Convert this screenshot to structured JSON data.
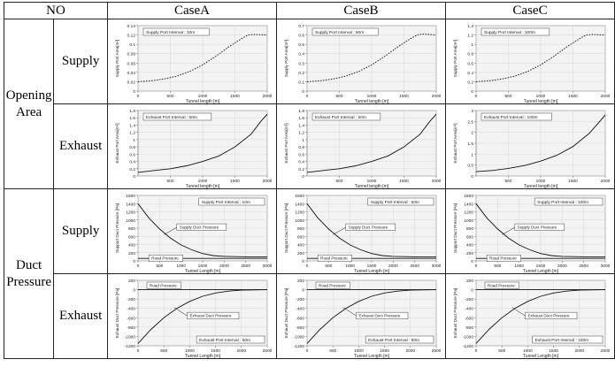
{
  "header": {
    "no": "NO",
    "caseA": "CaseA",
    "caseB": "CaseB",
    "caseC": "CaseC"
  },
  "groups": {
    "opening_area": {
      "line1": "Opening",
      "line2": "Area"
    },
    "duct_pressure": {
      "line1": "Duct",
      "line2": "Pressure"
    }
  },
  "rows": {
    "supply": "Supply",
    "exhaust": "Exhaust"
  },
  "chart_data": [
    {
      "id": "oa_supply_A",
      "type": "line",
      "box": "Supply Port Interval : 10m",
      "ylabel": "Supply Port Area[m²]",
      "xlabel": "Tunnel length [m]",
      "ylim": [
        0,
        0.14
      ],
      "yticks": [
        "0",
        "0.02",
        "0.04",
        "0.06",
        "0.08",
        "0.1",
        "0.12",
        "0.14"
      ],
      "xlim": [
        0,
        2000
      ],
      "xticks": [
        "0",
        "500",
        "1000",
        "1500",
        "2000"
      ],
      "style": "dashed",
      "series": [
        {
          "x": [
            0,
            200,
            400,
            600,
            800,
            1000,
            1200,
            1400,
            1600,
            1700,
            1800,
            2000
          ],
          "y": [
            0.02,
            0.022,
            0.026,
            0.032,
            0.042,
            0.056,
            0.074,
            0.094,
            0.112,
            0.12,
            0.121,
            0.12
          ]
        }
      ]
    },
    {
      "id": "oa_supply_B",
      "type": "line",
      "box": "Supply Port Interval : 50m",
      "ylabel": "Supply Port Area[m²]",
      "xlabel": "Tunnel length [m]",
      "ylim": [
        0,
        0.7
      ],
      "yticks": [
        "0",
        "0.1",
        "0.2",
        "0.3",
        "0.4",
        "0.5",
        "0.6",
        "0.7"
      ],
      "xlim": [
        0,
        2000
      ],
      "xticks": [
        "0",
        "500",
        "1000",
        "1500",
        "2000"
      ],
      "style": "dashed",
      "series": [
        {
          "x": [
            0,
            200,
            400,
            600,
            800,
            1000,
            1200,
            1400,
            1600,
            1700,
            1800,
            2000
          ],
          "y": [
            0.1,
            0.11,
            0.13,
            0.16,
            0.21,
            0.28,
            0.37,
            0.47,
            0.56,
            0.6,
            0.61,
            0.6
          ]
        }
      ]
    },
    {
      "id": "oa_supply_C",
      "type": "line",
      "box": "Supply Port Interval : 100m",
      "ylabel": "Supply Port Area[m²]",
      "xlabel": "Tunnel length [m]",
      "ylim": [
        0,
        1.4
      ],
      "yticks": [
        "0",
        "0.2",
        "0.4",
        "0.6",
        "0.8",
        "1",
        "1.2",
        "1.4"
      ],
      "xlim": [
        0,
        2000
      ],
      "xticks": [
        "0",
        "500",
        "1000",
        "1500",
        "2000"
      ],
      "style": "dashed",
      "series": [
        {
          "x": [
            0,
            200,
            400,
            600,
            800,
            1000,
            1200,
            1400,
            1600,
            1700,
            1800,
            2000
          ],
          "y": [
            0.2,
            0.22,
            0.26,
            0.32,
            0.42,
            0.56,
            0.74,
            0.94,
            1.12,
            1.2,
            1.21,
            1.2
          ]
        }
      ]
    },
    {
      "id": "oa_exhaust_A",
      "type": "line",
      "box": "Exhaust Port Interval : 50m",
      "ylabel": "Exhaust Port Area[m²]",
      "xlabel": "Tunnel length [m]",
      "ylim": [
        0,
        1.8
      ],
      "yticks": [
        "0",
        "0.2",
        "0.4",
        "0.6",
        "0.8",
        "1",
        "1.2",
        "1.4",
        "1.6",
        "1.8"
      ],
      "xlim": [
        0,
        2000
      ],
      "xticks": [
        "500",
        "1000",
        "1500",
        "2000"
      ],
      "style": "solid",
      "series": [
        {
          "x": [
            0,
            250,
            500,
            750,
            1000,
            1250,
            1500,
            1750,
            1900,
            2000
          ],
          "y": [
            0.1,
            0.15,
            0.2,
            0.28,
            0.4,
            0.55,
            0.8,
            1.15,
            1.5,
            1.7
          ]
        }
      ]
    },
    {
      "id": "oa_exhaust_B",
      "type": "line",
      "box": "Exhaust Port Interval : 50m",
      "ylabel": "Exhaust Port Area[m²]",
      "xlabel": "Tunnel length [m]",
      "ylim": [
        0,
        1.8
      ],
      "yticks": [
        "0",
        "0.2",
        "0.4",
        "0.6",
        "0.8",
        "1",
        "1.2",
        "1.4",
        "1.6",
        "1.8"
      ],
      "xlim": [
        0,
        2000
      ],
      "xticks": [
        "500",
        "1000",
        "1500",
        "2000"
      ],
      "style": "solid",
      "series": [
        {
          "x": [
            0,
            250,
            500,
            750,
            1000,
            1250,
            1500,
            1750,
            1900,
            2000
          ],
          "y": [
            0.1,
            0.15,
            0.2,
            0.28,
            0.4,
            0.55,
            0.8,
            1.15,
            1.5,
            1.7
          ]
        }
      ]
    },
    {
      "id": "oa_exhaust_C",
      "type": "line",
      "box": "Exhaust Port Interval : 100m",
      "ylabel": "Exhaust Port Area[m²]",
      "xlabel": "Tunnel length [m]",
      "ylim": [
        0,
        3
      ],
      "yticks": [
        "0",
        "0.5",
        "1",
        "1.5",
        "2",
        "2.5",
        "3"
      ],
      "xlim": [
        0,
        2000
      ],
      "xticks": [
        "500",
        "1000",
        "1500",
        "2000"
      ],
      "style": "solid",
      "series": [
        {
          "x": [
            0,
            250,
            500,
            750,
            1000,
            1250,
            1500,
            1750,
            1900,
            2000
          ],
          "y": [
            0.2,
            0.25,
            0.35,
            0.48,
            0.68,
            0.95,
            1.35,
            1.95,
            2.45,
            2.8
          ]
        }
      ]
    },
    {
      "id": "dp_supply_A",
      "type": "line",
      "box": "Supply Port Interval : 10m",
      "ylabel": "Support Duct Pressure [Pa]",
      "xlabel": "Tunnel Length [m]",
      "ylim": [
        0,
        1600
      ],
      "yticks": [
        "0",
        "200",
        "400",
        "600",
        "800",
        "1000",
        "1200",
        "1400",
        "1600"
      ],
      "xlim": [
        0,
        3000
      ],
      "xticks": [
        "0",
        "500",
        "1000",
        "1500",
        "2000",
        "2500",
        "3000"
      ],
      "style": "solid",
      "labels": [
        "Supply Duct Pressure",
        "Road Pressure"
      ],
      "series": [
        {
          "name": "Supply Duct Pressure",
          "x": [
            0,
            250,
            500,
            750,
            1000,
            1250,
            1500,
            1750,
            2000,
            2500,
            3000
          ],
          "y": [
            1400,
            1050,
            780,
            560,
            390,
            270,
            180,
            130,
            110,
            100,
            100
          ]
        },
        {
          "name": "Road Pressure",
          "x": [
            0,
            3000
          ],
          "y": [
            60,
            60
          ]
        }
      ]
    },
    {
      "id": "dp_supply_B",
      "type": "line",
      "box": "Supply Port Interval : 50m",
      "ylabel": "Support Duct Pressure [Pa]",
      "xlabel": "Tunnel Length [m]",
      "ylim": [
        0,
        1600
      ],
      "yticks": [
        "0",
        "200",
        "400",
        "600",
        "800",
        "1000",
        "1200",
        "1400",
        "1600"
      ],
      "xlim": [
        0,
        3000
      ],
      "xticks": [
        "0",
        "500",
        "1000",
        "1500",
        "2000",
        "2500",
        "3000"
      ],
      "style": "solid",
      "labels": [
        "Supply Duct Pressure",
        "Road Pressure"
      ],
      "series": [
        {
          "name": "Supply Duct Pressure",
          "x": [
            0,
            250,
            500,
            750,
            1000,
            1250,
            1500,
            1750,
            2000,
            2500,
            3000
          ],
          "y": [
            1400,
            1050,
            780,
            560,
            390,
            270,
            180,
            130,
            110,
            100,
            100
          ]
        },
        {
          "name": "Road Pressure",
          "x": [
            0,
            3000
          ],
          "y": [
            60,
            60
          ]
        }
      ]
    },
    {
      "id": "dp_supply_C",
      "type": "line",
      "box": "Supply Port Interval : 100m",
      "ylabel": "Support Duct Pressure [Pa]",
      "xlabel": "Tunnel Length [m]",
      "ylim": [
        0,
        1600
      ],
      "yticks": [
        "0",
        "200",
        "400",
        "600",
        "800",
        "1000",
        "1200",
        "1400",
        "1600"
      ],
      "xlim": [
        0,
        3000
      ],
      "xticks": [
        "0",
        "500",
        "1000",
        "1500",
        "2000",
        "2500",
        "3000"
      ],
      "style": "solid",
      "labels": [
        "Supply Duct Pressure",
        "Road Pressure"
      ],
      "series": [
        {
          "name": "Supply Duct Pressure",
          "x": [
            0,
            250,
            500,
            750,
            1000,
            1250,
            1500,
            1750,
            2000,
            2500,
            3000
          ],
          "y": [
            1400,
            1050,
            780,
            560,
            390,
            270,
            180,
            130,
            110,
            100,
            100
          ]
        },
        {
          "name": "Road Pressure",
          "x": [
            0,
            3000
          ],
          "y": [
            60,
            60
          ]
        }
      ]
    },
    {
      "id": "dp_exhaust_A",
      "type": "line",
      "box": "Exhaust Port Interval : 50m",
      "ylabel": "Exhaust Duct Pressure [Pa]",
      "xlabel": "Tunnel Length [m]",
      "ylim": [
        -1200,
        200
      ],
      "yticks": [
        "-1200",
        "-1000",
        "-800",
        "-600",
        "-400",
        "-200",
        "0",
        "200"
      ],
      "xlim": [
        0,
        2500
      ],
      "xticks": [
        "0",
        "500",
        "1000",
        "1500",
        "2000",
        "2500"
      ],
      "style": "solid",
      "labels": [
        "Exhaust Duct Pressure",
        "Road Pressure"
      ],
      "series": [
        {
          "name": "Exhaust Duct Pressure",
          "x": [
            0,
            250,
            500,
            750,
            1000,
            1250,
            1500,
            1750,
            2000,
            2500
          ],
          "y": [
            -1150,
            -850,
            -600,
            -400,
            -250,
            -140,
            -70,
            -30,
            -10,
            0
          ]
        },
        {
          "name": "Road Pressure",
          "x": [
            0,
            2500
          ],
          "y": [
            0,
            0
          ]
        }
      ]
    },
    {
      "id": "dp_exhaust_B",
      "type": "line",
      "box": "Exhaust Port Interval : 50m",
      "ylabel": "Exhaust Duct Pressure [Pa]",
      "xlabel": "Tunnel Length [m]",
      "ylim": [
        -1200,
        200
      ],
      "yticks": [
        "-1200",
        "-1000",
        "-800",
        "-600",
        "-400",
        "-200",
        "0",
        "200"
      ],
      "xlim": [
        0,
        2500
      ],
      "xticks": [
        "0",
        "500",
        "1000",
        "1500",
        "2000",
        "2500"
      ],
      "style": "solid",
      "labels": [
        "Exhaust Duct Pressure",
        "Road Pressure"
      ],
      "series": [
        {
          "name": "Exhaust Duct Pressure",
          "x": [
            0,
            250,
            500,
            750,
            1000,
            1250,
            1500,
            1750,
            2000,
            2500
          ],
          "y": [
            -1150,
            -850,
            -600,
            -400,
            -250,
            -140,
            -70,
            -30,
            -10,
            0
          ]
        },
        {
          "name": "Road Pressure",
          "x": [
            0,
            2500
          ],
          "y": [
            0,
            0
          ]
        }
      ]
    },
    {
      "id": "dp_exhaust_C",
      "type": "line",
      "box": "Exhaust Port Interval : 100m",
      "ylabel": "Exhaust Duct Pressure [Pa]",
      "xlabel": "Tunnel Length [m]",
      "ylim": [
        -1200,
        200
      ],
      "yticks": [
        "-1200",
        "-1000",
        "-800",
        "-600",
        "-400",
        "-200",
        "0",
        "200"
      ],
      "xlim": [
        0,
        2500
      ],
      "xticks": [
        "0",
        "500",
        "1000",
        "1500",
        "2000",
        "2500"
      ],
      "style": "solid",
      "labels": [
        "Exhaust Duct Pressure",
        "Road Pressure"
      ],
      "series": [
        {
          "name": "Exhaust Duct Pressure",
          "x": [
            0,
            250,
            500,
            750,
            1000,
            1250,
            1500,
            1750,
            2000,
            2500
          ],
          "y": [
            -1150,
            -850,
            -600,
            -400,
            -250,
            -140,
            -70,
            -30,
            -10,
            0
          ]
        },
        {
          "name": "Road Pressure",
          "x": [
            0,
            2500
          ],
          "y": [
            0,
            0
          ]
        }
      ]
    }
  ]
}
